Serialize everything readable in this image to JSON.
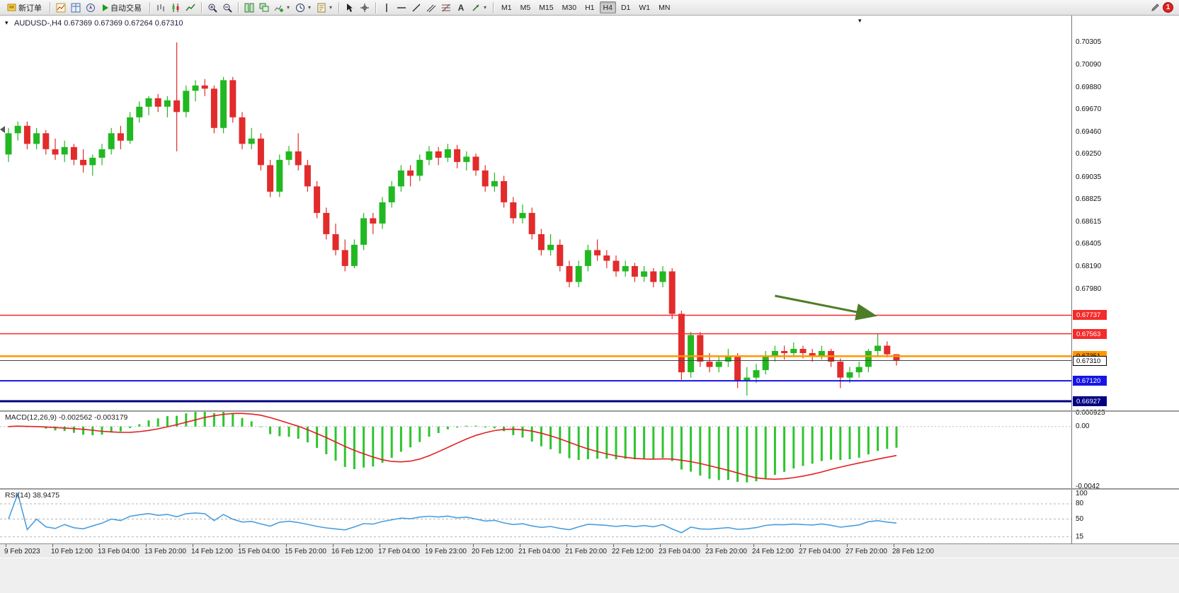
{
  "toolbar": {
    "new_order_label": "新订单",
    "auto_trading_label": "自动交易",
    "timeframes": [
      "M1",
      "M5",
      "M15",
      "M30",
      "H1",
      "H4",
      "D1",
      "W1",
      "MN"
    ],
    "active_timeframe": "H4",
    "notification_badge": "1"
  },
  "chart": {
    "title": "AUDUSD-,H4 0.67369 0.67369 0.67264 0.67310",
    "symbol": "AUDUSD-",
    "period": "H4"
  },
  "indicators": {
    "macd": {
      "label": "MACD(12,26,9)",
      "main_value": "-0.002562",
      "signal_value": "-0.003179"
    },
    "rsi": {
      "label": "RSI(14)",
      "value": "38.9475"
    }
  },
  "chart_data": [
    {
      "type": "candlestick",
      "title": "AUDUSD- H4",
      "up_color": "#22b822",
      "down_color": "#e22b2b",
      "ylim": [
        0.6684,
        0.7054
      ],
      "y_ticks": [
        "0.70305",
        "0.70090",
        "0.69880",
        "0.69670",
        "0.69460",
        "0.69250",
        "0.69035",
        "0.68825",
        "0.68615",
        "0.68405",
        "0.68190",
        "0.67980"
      ],
      "x_labels": [
        "9 Feb 2023",
        "10 Feb 12:00",
        "13 Feb 04:00",
        "13 Feb 20:00",
        "14 Feb 12:00",
        "15 Feb 04:00",
        "15 Feb 20:00",
        "16 Feb 12:00",
        "17 Feb 04:00",
        "19 Feb 23:00",
        "20 Feb 12:00",
        "21 Feb 04:00",
        "21 Feb 20:00",
        "22 Feb 12:00",
        "23 Feb 04:00",
        "23 Feb 20:00",
        "24 Feb 12:00",
        "27 Feb 04:00",
        "27 Feb 20:00",
        "28 Feb 12:00"
      ],
      "ohlc": [
        [
          0.6925,
          0.695,
          0.6918,
          0.6945
        ],
        [
          0.6945,
          0.6956,
          0.6938,
          0.6952
        ],
        [
          0.6952,
          0.6956,
          0.693,
          0.6935
        ],
        [
          0.6935,
          0.695,
          0.693,
          0.6945
        ],
        [
          0.6945,
          0.6948,
          0.6925,
          0.693
        ],
        [
          0.693,
          0.694,
          0.692,
          0.6925
        ],
        [
          0.6925,
          0.6938,
          0.6918,
          0.6932
        ],
        [
          0.6932,
          0.6935,
          0.6915,
          0.692
        ],
        [
          0.692,
          0.693,
          0.6908,
          0.6915
        ],
        [
          0.6915,
          0.6925,
          0.6905,
          0.6922
        ],
        [
          0.6922,
          0.6935,
          0.6915,
          0.693
        ],
        [
          0.693,
          0.695,
          0.6925,
          0.6945
        ],
        [
          0.6945,
          0.6952,
          0.693,
          0.6938
        ],
        [
          0.6938,
          0.6965,
          0.6935,
          0.696
        ],
        [
          0.696,
          0.6975,
          0.6955,
          0.697
        ],
        [
          0.697,
          0.698,
          0.6962,
          0.6978
        ],
        [
          0.6978,
          0.6982,
          0.6965,
          0.697
        ],
        [
          0.697,
          0.698,
          0.696,
          0.6976
        ],
        [
          0.6976,
          0.70305,
          0.6928,
          0.6965
        ],
        [
          0.6965,
          0.699,
          0.696,
          0.6985
        ],
        [
          0.6985,
          0.6995,
          0.6975,
          0.699
        ],
        [
          0.699,
          0.6996,
          0.698,
          0.6987
        ],
        [
          0.6987,
          0.699,
          0.6945,
          0.695
        ],
        [
          0.695,
          0.6998,
          0.6945,
          0.6995
        ],
        [
          0.6995,
          0.6998,
          0.6955,
          0.696
        ],
        [
          0.696,
          0.6965,
          0.693,
          0.6935
        ],
        [
          0.6935,
          0.695,
          0.693,
          0.694
        ],
        [
          0.694,
          0.6945,
          0.691,
          0.6915
        ],
        [
          0.6915,
          0.692,
          0.6885,
          0.689
        ],
        [
          0.689,
          0.6925,
          0.6885,
          0.692
        ],
        [
          0.692,
          0.6933,
          0.6915,
          0.6928
        ],
        [
          0.6928,
          0.6945,
          0.691,
          0.6915
        ],
        [
          0.6915,
          0.692,
          0.689,
          0.6895
        ],
        [
          0.6895,
          0.69,
          0.6865,
          0.687
        ],
        [
          0.687,
          0.6875,
          0.6845,
          0.685
        ],
        [
          0.685,
          0.686,
          0.683,
          0.6835
        ],
        [
          0.6835,
          0.6845,
          0.6815,
          0.682
        ],
        [
          0.682,
          0.6845,
          0.6818,
          0.684
        ],
        [
          0.684,
          0.687,
          0.6835,
          0.6865
        ],
        [
          0.6865,
          0.687,
          0.685,
          0.686
        ],
        [
          0.686,
          0.6885,
          0.6855,
          0.688
        ],
        [
          0.688,
          0.69,
          0.6875,
          0.6895
        ],
        [
          0.6895,
          0.6915,
          0.689,
          0.691
        ],
        [
          0.691,
          0.6915,
          0.6895,
          0.6905
        ],
        [
          0.6905,
          0.6925,
          0.69,
          0.692
        ],
        [
          0.692,
          0.6933,
          0.6915,
          0.6928
        ],
        [
          0.6928,
          0.6932,
          0.6915,
          0.6922
        ],
        [
          0.6922,
          0.6935,
          0.6918,
          0.693
        ],
        [
          0.693,
          0.6934,
          0.6912,
          0.6918
        ],
        [
          0.6918,
          0.6928,
          0.691,
          0.6923
        ],
        [
          0.6923,
          0.6926,
          0.6905,
          0.691
        ],
        [
          0.691,
          0.6915,
          0.689,
          0.6895
        ],
        [
          0.6895,
          0.6908,
          0.689,
          0.69
        ],
        [
          0.69,
          0.6905,
          0.6875,
          0.688
        ],
        [
          0.688,
          0.6885,
          0.686,
          0.6865
        ],
        [
          0.6865,
          0.6878,
          0.686,
          0.687
        ],
        [
          0.687,
          0.6875,
          0.6845,
          0.685
        ],
        [
          0.685,
          0.6855,
          0.683,
          0.6835
        ],
        [
          0.6835,
          0.685,
          0.683,
          0.684
        ],
        [
          0.684,
          0.6845,
          0.6815,
          0.682
        ],
        [
          0.682,
          0.6825,
          0.68,
          0.6805
        ],
        [
          0.6805,
          0.6825,
          0.68,
          0.682
        ],
        [
          0.682,
          0.684,
          0.6815,
          0.6835
        ],
        [
          0.6835,
          0.6845,
          0.6825,
          0.683
        ],
        [
          0.683,
          0.6835,
          0.6818,
          0.6825
        ],
        [
          0.6825,
          0.683,
          0.681,
          0.6815
        ],
        [
          0.6815,
          0.6825,
          0.681,
          0.682
        ],
        [
          0.682,
          0.6823,
          0.6805,
          0.681
        ],
        [
          0.681,
          0.682,
          0.6805,
          0.6815
        ],
        [
          0.6815,
          0.6818,
          0.68,
          0.6805
        ],
        [
          0.6805,
          0.682,
          0.68,
          0.6815
        ],
        [
          0.6815,
          0.6818,
          0.677,
          0.6775
        ],
        [
          0.6775,
          0.6778,
          0.6713,
          0.672
        ],
        [
          0.672,
          0.6758,
          0.6715,
          0.6755
        ],
        [
          0.6755,
          0.6758,
          0.6725,
          0.673
        ],
        [
          0.673,
          0.6738,
          0.672,
          0.6725
        ],
        [
          0.6725,
          0.6735,
          0.672,
          0.673
        ],
        [
          0.673,
          0.6742,
          0.6725,
          0.6735
        ],
        [
          0.6735,
          0.6738,
          0.6705,
          0.6712
        ],
        [
          0.6712,
          0.6725,
          0.6698,
          0.6715
        ],
        [
          0.6715,
          0.6728,
          0.671,
          0.6722
        ],
        [
          0.6722,
          0.674,
          0.6718,
          0.6735
        ],
        [
          0.6735,
          0.6745,
          0.673,
          0.674
        ],
        [
          0.674,
          0.6745,
          0.6732,
          0.6738
        ],
        [
          0.6738,
          0.6748,
          0.6735,
          0.6742
        ],
        [
          0.6742,
          0.6745,
          0.6733,
          0.6738
        ],
        [
          0.6738,
          0.6742,
          0.673,
          0.6735
        ],
        [
          0.6735,
          0.6745,
          0.6732,
          0.674
        ],
        [
          0.674,
          0.6742,
          0.6725,
          0.673
        ],
        [
          0.673,
          0.6733,
          0.6705,
          0.6715
        ],
        [
          0.6715,
          0.6725,
          0.671,
          0.672
        ],
        [
          0.672,
          0.673,
          0.6715,
          0.6725
        ],
        [
          0.6725,
          0.6742,
          0.672,
          0.674
        ],
        [
          0.674,
          0.6756,
          0.6735,
          0.6745
        ],
        [
          0.6745,
          0.6749,
          0.6734,
          0.67369
        ],
        [
          0.67369,
          0.67369,
          0.67264,
          0.6731
        ]
      ],
      "levels": [
        {
          "price": "0.67737",
          "line_color": "#f52b2b",
          "line_width": 1.5,
          "box_bg": "#f52b2b",
          "box_fg": "#ffffff"
        },
        {
          "price": "0.67563",
          "line_color": "#f52b2b",
          "line_width": 1.5,
          "box_bg": "#f52b2b",
          "box_fg": "#ffffff"
        },
        {
          "price": "0.67351",
          "line_color": "#ff9800",
          "line_width": 2.5,
          "box_bg": "#ff9800",
          "box_fg": "#000000"
        },
        {
          "price": "0.67310",
          "line_color": "#444444",
          "line_width": 1,
          "box_bg": "#ffffff",
          "box_fg": "#000000",
          "box_border": "#000000",
          "current": true
        },
        {
          "price": "0.67120",
          "line_color": "#1515e6",
          "line_width": 2,
          "box_bg": "#1515e6",
          "box_fg": "#ffffff"
        },
        {
          "price": "0.66927",
          "line_color": "#000080",
          "line_width": 3,
          "box_bg": "#000080",
          "box_fg": "#ffffff"
        }
      ],
      "current_price": "0.67310",
      "annotations": [
        {
          "type": "arrow",
          "from": {
            "bar": 82,
            "price": 0.6792
          },
          "to": {
            "bar": 92.5,
            "price": 0.67737
          },
          "color": "#4e7d28"
        }
      ]
    },
    {
      "type": "macd",
      "label": "MACD(12,26,9)",
      "fast": 12,
      "slow": 26,
      "signal": 9,
      "main_value": -0.002562,
      "signal_value": -0.003179,
      "histogram_color": "#2fc42f",
      "signal_color": "#e02020",
      "axis_ticks": [
        0.000925,
        0,
        -0.0042
      ],
      "axis_labels": [
        "0.000925",
        "0.00",
        "-0.0042"
      ]
    },
    {
      "type": "rsi",
      "label": "RSI(14)",
      "period": 14,
      "value": 38.9475,
      "line_color": "#4a9ede",
      "levels": [
        80,
        50,
        15
      ],
      "axis_ticks": [
        100,
        80,
        50,
        15
      ],
      "axis_labels": [
        "100",
        "80",
        "50",
        "15"
      ]
    }
  ]
}
